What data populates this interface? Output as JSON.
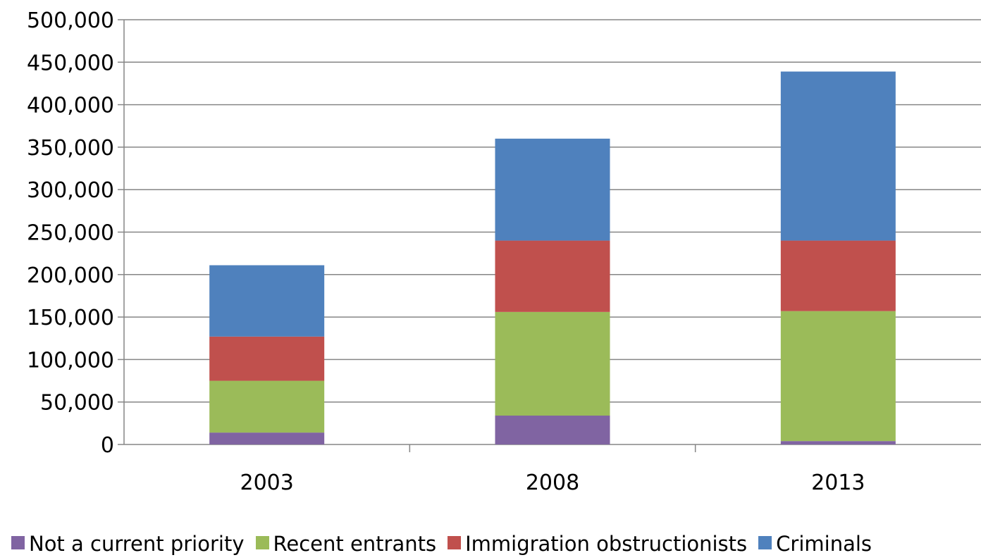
{
  "chart_data": {
    "type": "bar",
    "stacked": true,
    "categories": [
      "2003",
      "2008",
      "2013"
    ],
    "series": [
      {
        "name": "Not a current priority",
        "color": "#8064a2",
        "values": [
          14000,
          34000,
          4000
        ]
      },
      {
        "name": "Recent entrants",
        "color": "#9bbb59",
        "values": [
          61000,
          122000,
          153000
        ]
      },
      {
        "name": "Immigration obstructionists",
        "color": "#c0504d",
        "values": [
          52000,
          84000,
          83000
        ]
      },
      {
        "name": "Criminals",
        "color": "#4f81bd",
        "values": [
          84000,
          120000,
          199000
        ]
      }
    ],
    "ylim": [
      0,
      500000
    ],
    "yticks": [
      "0",
      "50,000",
      "100,000",
      "150,000",
      "200,000",
      "250,000",
      "300,000",
      "350,000",
      "400,000",
      "450,000",
      "500,000"
    ],
    "grid": true,
    "legend_position": "bottom",
    "title": "",
    "xlabel": "",
    "ylabel": ""
  }
}
